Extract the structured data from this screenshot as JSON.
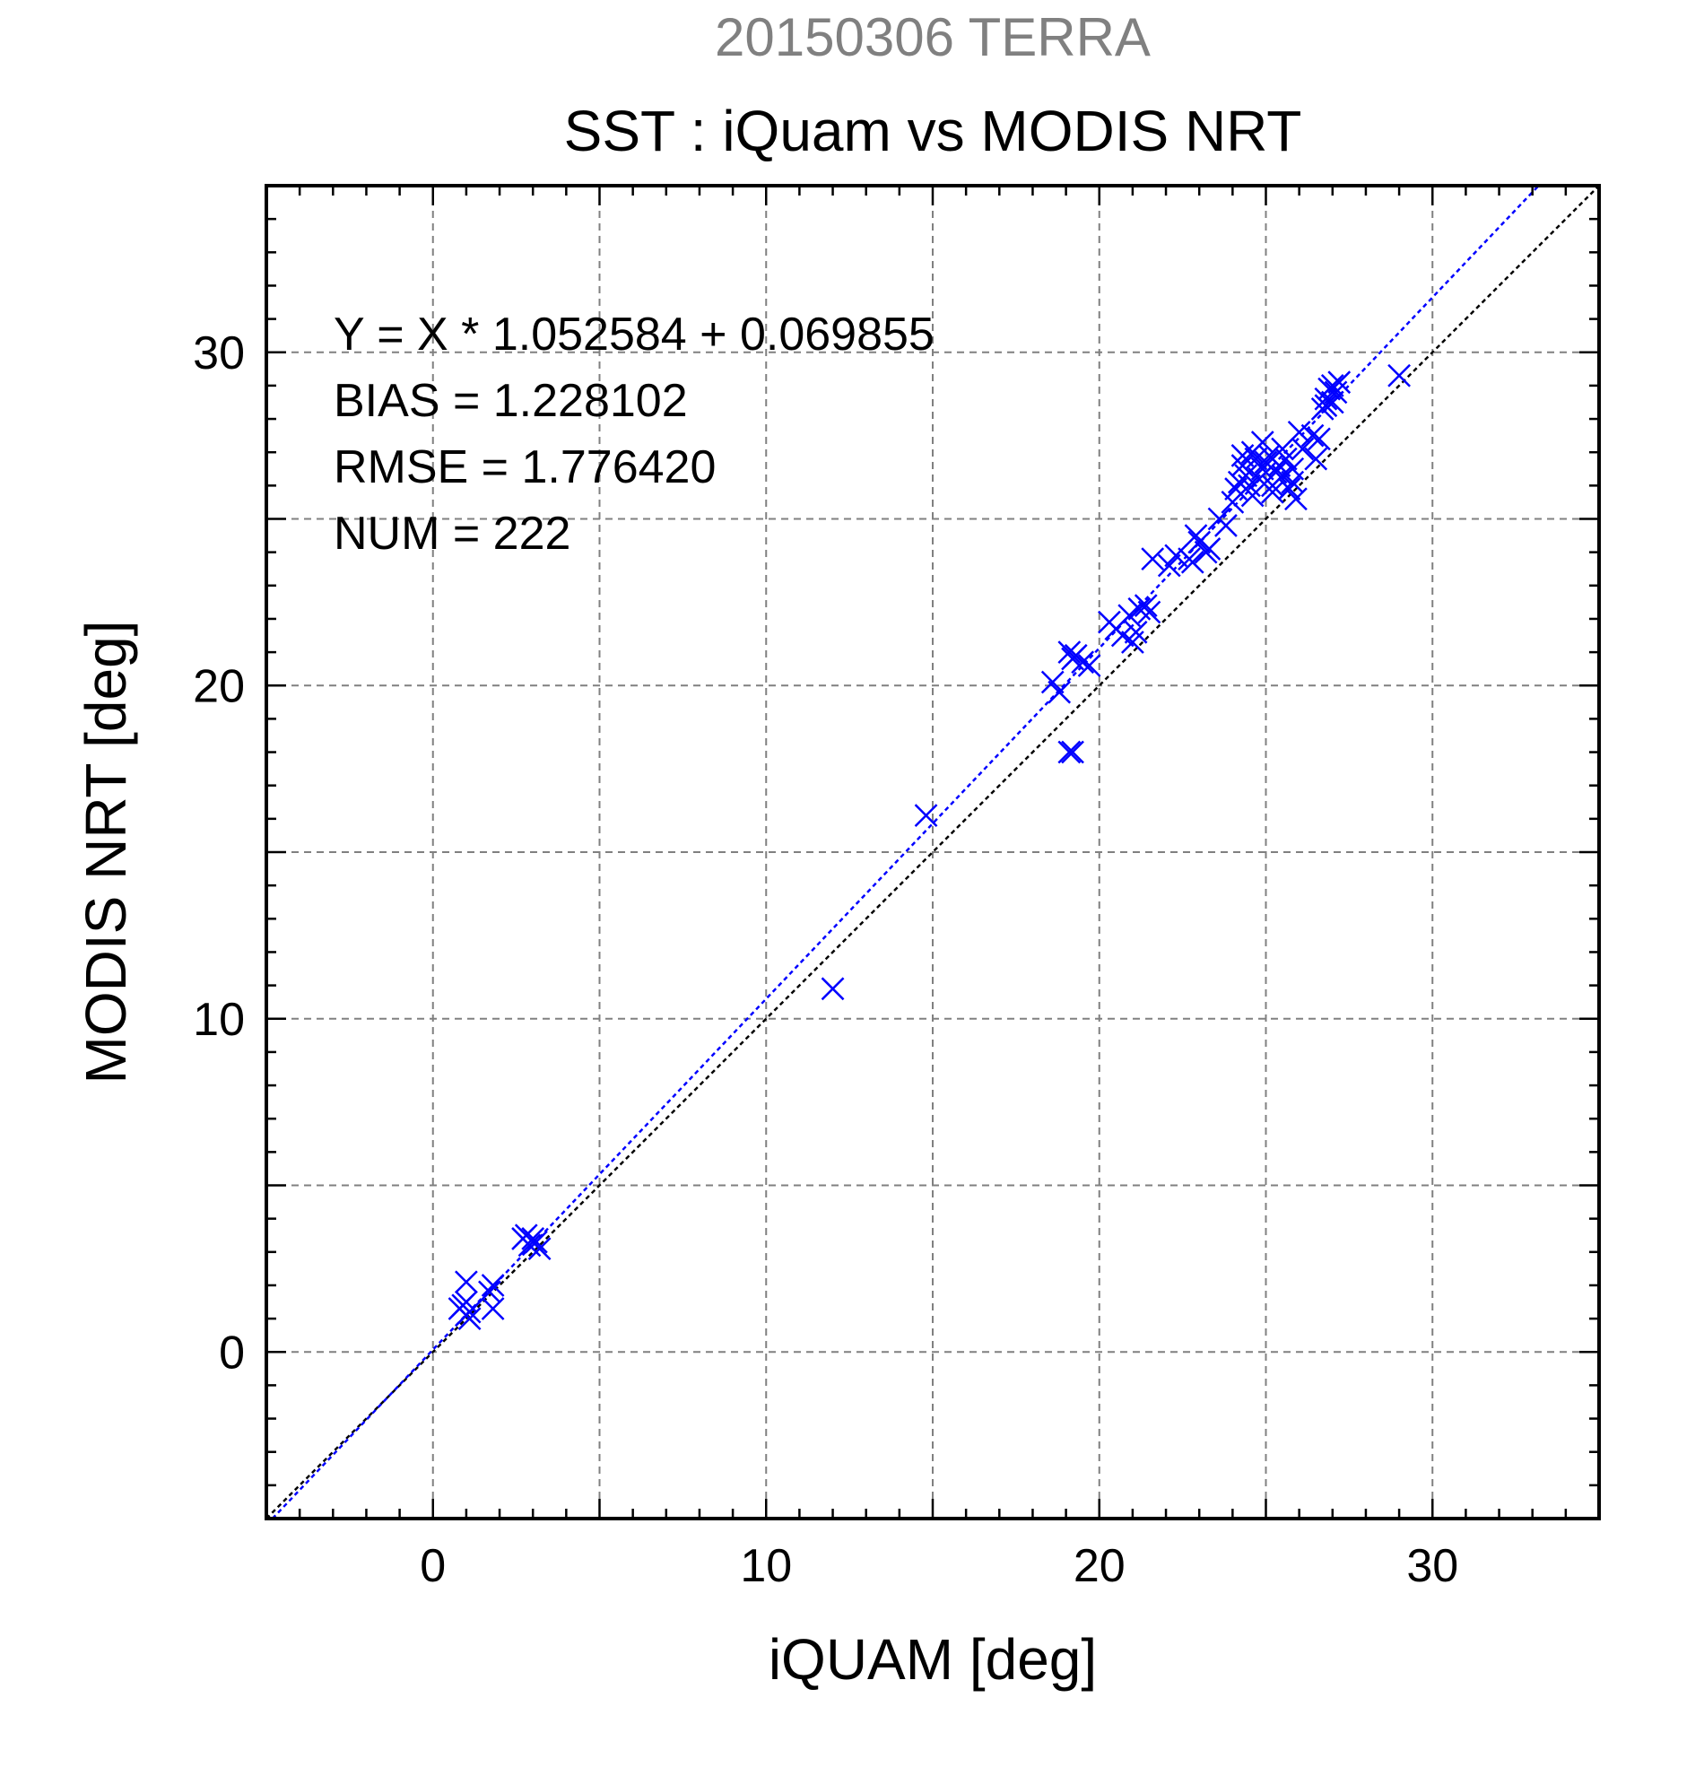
{
  "chart_data": {
    "type": "scatter",
    "suptitle": "20150306 TERRA",
    "title": "SST : iQuam vs MODIS NRT",
    "xlabel": "iQUAM [deg]",
    "ylabel": "MODIS NRT [deg]",
    "xlim": [
      -5,
      35
    ],
    "ylim": [
      -5,
      35
    ],
    "xticks": [
      0,
      10,
      20,
      30
    ],
    "yticks": [
      0,
      10,
      20,
      30
    ],
    "grid": true,
    "annotations": [
      "Y = X * 1.052584 + 0.069855",
      "BIAS = 1.228102",
      "RMSE = 1.776420",
      "NUM = 222"
    ],
    "colors": {
      "points": "#0000ff",
      "fit_line": "#0000ff",
      "identity_line": "#000000",
      "suptitle": "#808080",
      "grid": "#808080"
    },
    "fit": {
      "slope": 1.052584,
      "intercept": 0.069855
    },
    "series": [
      {
        "marker": "x",
        "x": [
          0.8,
          1.0,
          1.0,
          1.1,
          1.0,
          0.9,
          1.1,
          1.7,
          1.8,
          1.8,
          2.7,
          2.8,
          2.9,
          3.0,
          3.1,
          3.2,
          12.0,
          14.8,
          18.6,
          18.8,
          19.1,
          19.3,
          19.2,
          19.5,
          19.7,
          19.2,
          19.1,
          20.3,
          20.5,
          20.7,
          20.9,
          21.0,
          21.2,
          21.4,
          21.5,
          21.1,
          21.6,
          22.1,
          22.3,
          22.7,
          22.9,
          23.0,
          23.2,
          23.3,
          22.8,
          23.6,
          23.8,
          24.0,
          24.1,
          24.2,
          24.3,
          24.4,
          24.5,
          24.6,
          24.7,
          24.8,
          24.9,
          25.0,
          25.1,
          25.2,
          25.3,
          25.4,
          25.5,
          25.6,
          25.7,
          25.8,
          25.9,
          26.0,
          24.3,
          24.6,
          24.9,
          25.2,
          25.5,
          25.8,
          26.1,
          26.4,
          26.6,
          26.5,
          26.7,
          26.8,
          26.9,
          27.0,
          27.1,
          27.2,
          26.8,
          27.0,
          29.0
        ],
        "y": [
          1.3,
          1.1,
          1.5,
          1.0,
          2.1,
          1.4,
          1.2,
          1.8,
          2.0,
          1.3,
          3.4,
          3.5,
          3.2,
          3.4,
          3.3,
          3.1,
          10.9,
          16.1,
          20.1,
          19.8,
          21.0,
          20.9,
          20.8,
          20.7,
          20.6,
          18.0,
          18.0,
          21.9,
          21.7,
          21.5,
          22.1,
          21.3,
          22.3,
          22.4,
          22.2,
          21.6,
          23.8,
          23.6,
          23.9,
          23.8,
          24.5,
          24.3,
          24.0,
          24.1,
          23.7,
          25.0,
          24.8,
          25.5,
          25.9,
          26.1,
          26.6,
          26.3,
          26.0,
          27.0,
          26.8,
          26.2,
          26.5,
          26.7,
          26.9,
          25.8,
          26.4,
          26.6,
          27.1,
          26.8,
          25.9,
          26.1,
          25.6,
          27.6,
          26.9,
          25.7,
          27.3,
          26.0,
          26.3,
          26.5,
          27.1,
          27.5,
          27.4,
          26.8,
          28.3,
          28.6,
          28.9,
          29.0,
          28.8,
          29.1,
          28.4,
          28.5,
          29.3
        ]
      }
    ]
  }
}
